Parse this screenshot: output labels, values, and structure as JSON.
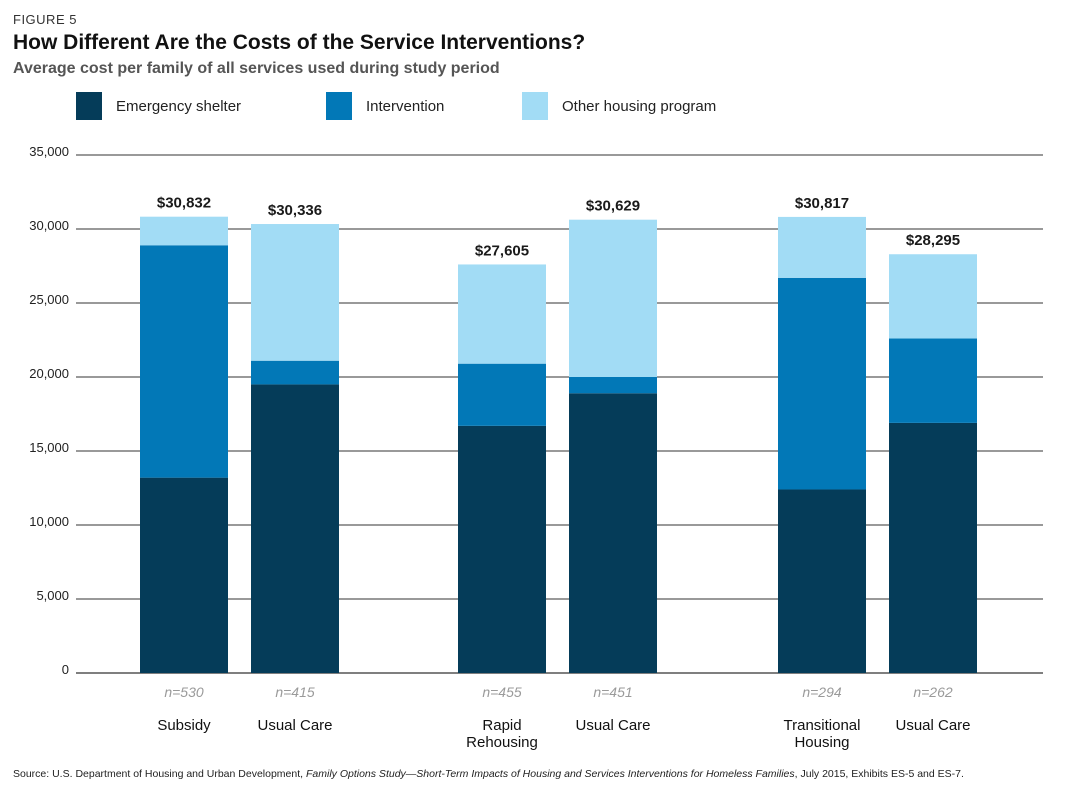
{
  "figure_label": "FIGURE 5",
  "title": "How Different Are the Costs of the Service Interventions?",
  "subtitle": "Average cost per family of all services used during study period",
  "source": {
    "prefix": "Source: U.S. Department of Housing and Urban Development, ",
    "title": "Family Options Study—Short-Term Impacts of Housing and Services Interventions for Homeless Families",
    "suffix": ", July 2015, Exhibits ES-5 and ES-7."
  },
  "colors": {
    "emergency": "#053c59",
    "intervention": "#0278b7",
    "other": "#a2dcf5",
    "grid": "#333333",
    "n_label": "#9a9a9a"
  },
  "chart_data": {
    "type": "bar",
    "stacked": true,
    "title": "How Different Are the Costs of the Service Interventions?",
    "ylabel": "",
    "xlabel": "",
    "ylim": [
      0,
      35000
    ],
    "yticks": [
      0,
      5000,
      10000,
      15000,
      20000,
      25000,
      30000,
      35000
    ],
    "ytick_labels": [
      "0",
      "5,000",
      "10,000",
      "15,000",
      "20,000",
      "25,000",
      "30,000",
      "35,000"
    ],
    "legend_position": "top",
    "categories": [
      {
        "label": "Subsidy",
        "group": 0,
        "n": "n=530",
        "total_label": "$30,832"
      },
      {
        "label": "Usual Care",
        "group": 0,
        "n": "n=415",
        "total_label": "$30,336"
      },
      {
        "label": "Rapid Rehousing",
        "group": 1,
        "n": "n=455",
        "total_label": "$27,605"
      },
      {
        "label": "Usual Care",
        "group": 1,
        "n": "n=451",
        "total_label": "$30,629"
      },
      {
        "label": "Transitional Housing",
        "group": 2,
        "n": "n=294",
        "total_label": "$30,817"
      },
      {
        "label": "Usual Care",
        "group": 2,
        "n": "n=262",
        "total_label": "$28,295"
      }
    ],
    "series": [
      {
        "name": "Emergency shelter",
        "color_key": "emergency",
        "values": [
          13200,
          19500,
          16700,
          18900,
          12400,
          16900
        ]
      },
      {
        "name": "Intervention",
        "color_key": "intervention",
        "values": [
          15700,
          1600,
          4200,
          1100,
          14300,
          5700
        ]
      },
      {
        "name": "Other housing program",
        "color_key": "other",
        "values": [
          1932,
          9236,
          6705,
          10629,
          4117,
          5695
        ]
      }
    ]
  }
}
